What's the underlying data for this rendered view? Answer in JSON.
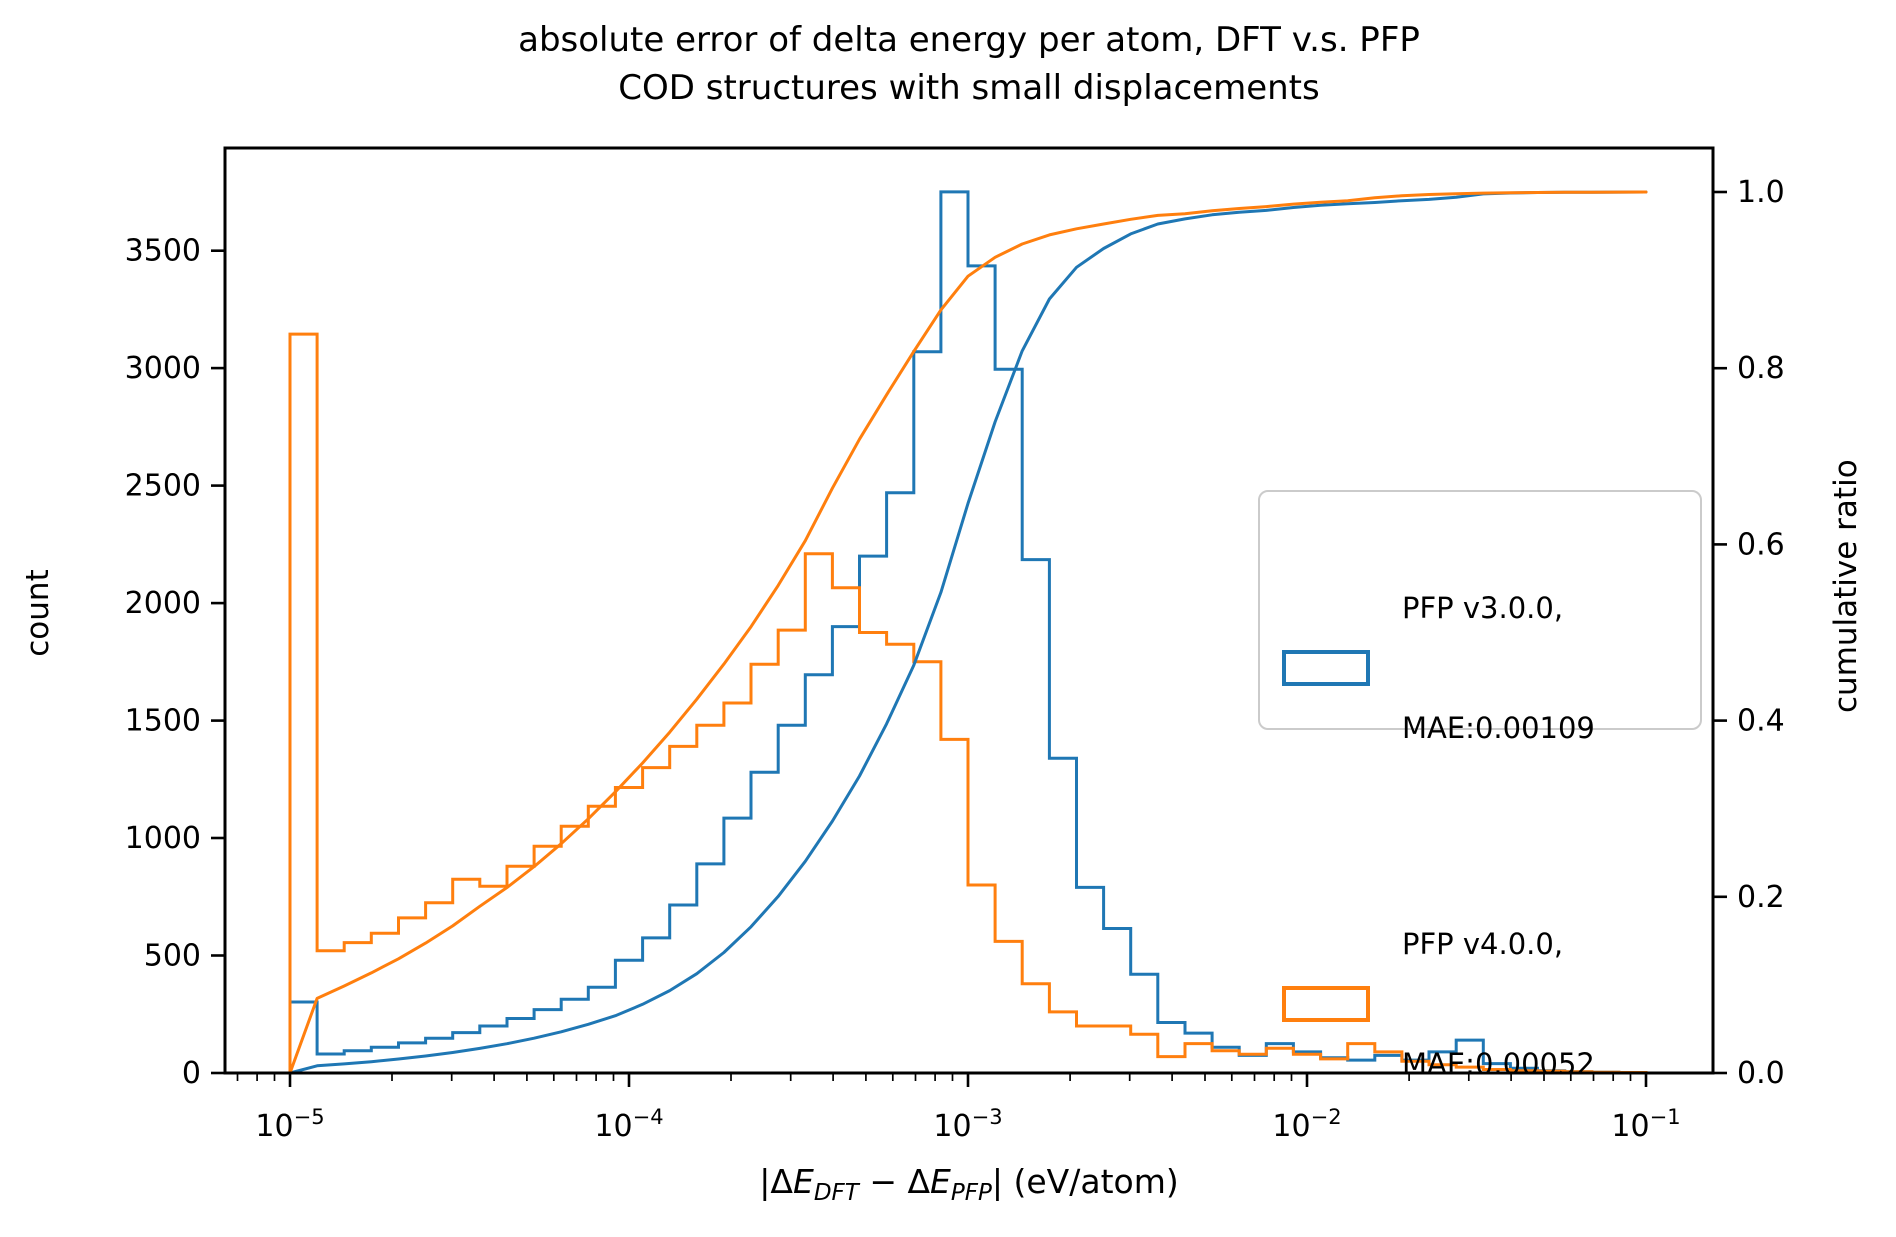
{
  "title": {
    "line1": "absolute error of delta energy per atom, DFT v.s. PFP",
    "line2": "COD structures with small displacements"
  },
  "axes": {
    "x": {
      "scale": "log",
      "label_parts": {
        "open": "|Δ",
        "var1": "E",
        "sub1": "DFT",
        "minus": " − Δ",
        "var2": "E",
        "sub2": "PFP",
        "close": "| (eV/atom)"
      },
      "major_ticks": [
        {
          "log10": -5,
          "base": "10",
          "exp": "−5"
        },
        {
          "log10": -4,
          "base": "10",
          "exp": "−4"
        },
        {
          "log10": -3,
          "base": "10",
          "exp": "−3"
        },
        {
          "log10": -2,
          "base": "10",
          "exp": "−2"
        },
        {
          "log10": -1,
          "base": "10",
          "exp": "−1"
        }
      ]
    },
    "y_left": {
      "label": "count",
      "ticks": [
        {
          "text": "0",
          "value": 0
        },
        {
          "text": "500",
          "value": 500
        },
        {
          "text": "1000",
          "value": 1000
        },
        {
          "text": "1500",
          "value": 1500
        },
        {
          "text": "2000",
          "value": 2000
        },
        {
          "text": "2500",
          "value": 2500
        },
        {
          "text": "3000",
          "value": 3000
        },
        {
          "text": "3500",
          "value": 3500
        }
      ]
    },
    "y_right": {
      "label": "cumulative ratio",
      "ticks": [
        {
          "text": "0.0",
          "value": 0.0
        },
        {
          "text": "0.2",
          "value": 0.2
        },
        {
          "text": "0.4",
          "value": 0.4
        },
        {
          "text": "0.6",
          "value": 0.6
        },
        {
          "text": "0.8",
          "value": 0.8
        },
        {
          "text": "1.0",
          "value": 1.0
        }
      ]
    }
  },
  "legend": {
    "items": [
      {
        "line1": "PFP v3.0.0,",
        "line2": "MAE:0.00109",
        "color": "#1f77b4"
      },
      {
        "line1": "PFP v4.0.0,",
        "line2": "MAE:0.00052",
        "color": "#ff7f0e"
      }
    ]
  },
  "chart_data": {
    "type": "histogram_with_cumulative",
    "x_scale": "log",
    "bins": {
      "log10_start": -5,
      "log10_stop": -1,
      "n_bins": 50
    },
    "xlim_log10": [
      -5.1917,
      -0.8024
    ],
    "ylim_count": [
      0,
      3937
    ],
    "ylim_ratio": [
      0,
      1.05
    ],
    "grid": false,
    "legend_position": "center right",
    "series": [
      {
        "name": "PFP v3.0.0",
        "mae": 0.00109,
        "color": "#1f77b4",
        "counts": [
          302,
          81,
          95,
          110,
          128,
          148,
          172,
          200,
          232,
          270,
          314,
          365,
          480,
          575,
          715,
          890,
          1085,
          1280,
          1480,
          1695,
          1900,
          2200,
          2470,
          3070,
          3750,
          3435,
          2995,
          2185,
          1340,
          790,
          615,
          420,
          215,
          170,
          110,
          75,
          125,
          90,
          65,
          55,
          75,
          55,
          90,
          140,
          40,
          20,
          10,
          5,
          3,
          2
        ],
        "cumulative_note": "cumulative ratio curve = cumsum(counts)/total"
      },
      {
        "name": "PFP v4.0.0",
        "mae": 0.00052,
        "color": "#ff7f0e",
        "counts": [
          3145,
          520,
          555,
          595,
          660,
          725,
          825,
          795,
          880,
          965,
          1050,
          1135,
          1215,
          1300,
          1390,
          1480,
          1575,
          1740,
          1885,
          2210,
          2065,
          1875,
          1825,
          1750,
          1420,
          800,
          560,
          380,
          260,
          200,
          200,
          165,
          70,
          125,
          95,
          80,
          105,
          80,
          60,
          125,
          90,
          50,
          35,
          25,
          15,
          10,
          8,
          5,
          3,
          2
        ],
        "cumulative_note": "cumulative ratio curve = cumsum(counts)/total"
      }
    ]
  }
}
